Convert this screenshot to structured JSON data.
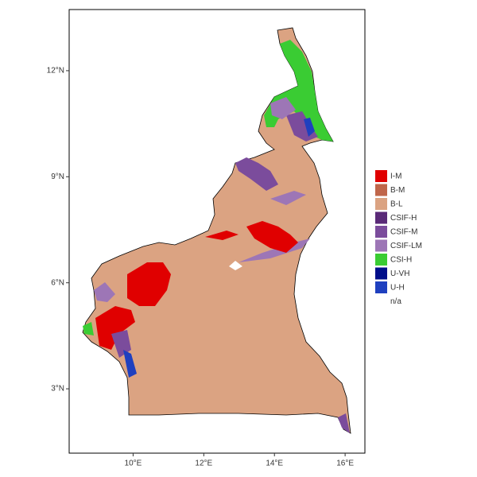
{
  "map": {
    "xlim": [
      8.19,
      16.56
    ],
    "ylim": [
      1.18,
      13.73
    ],
    "x_ticks": [
      {
        "value": 10,
        "label": "10°E"
      },
      {
        "value": 12,
        "label": "12°E"
      },
      {
        "value": 14,
        "label": "14°E"
      },
      {
        "value": 16,
        "label": "16°E"
      }
    ],
    "y_ticks": [
      {
        "value": 3,
        "label": "3°N"
      },
      {
        "value": 6,
        "label": "6°N"
      },
      {
        "value": 9,
        "label": "9°N"
      },
      {
        "value": 12,
        "label": "12°N"
      }
    ],
    "legend": [
      {
        "label": "I-M",
        "color": "#e00000"
      },
      {
        "label": "B-M",
        "color": "#c0664a"
      },
      {
        "label": "B-L",
        "color": "#dba382"
      },
      {
        "label": "CSIF-H",
        "color": "#5a2a78"
      },
      {
        "label": "CSIF-M",
        "color": "#7b4c9c"
      },
      {
        "label": "CSIF-LM",
        "color": "#9d76b6"
      },
      {
        "label": "CSI-H",
        "color": "#3acc33"
      },
      {
        "label": "U-VH",
        "color": "#000e8a"
      },
      {
        "label": "U-H",
        "color": "#1f40bf"
      },
      {
        "label": "n/a",
        "color": "#ffffff"
      }
    ]
  }
}
